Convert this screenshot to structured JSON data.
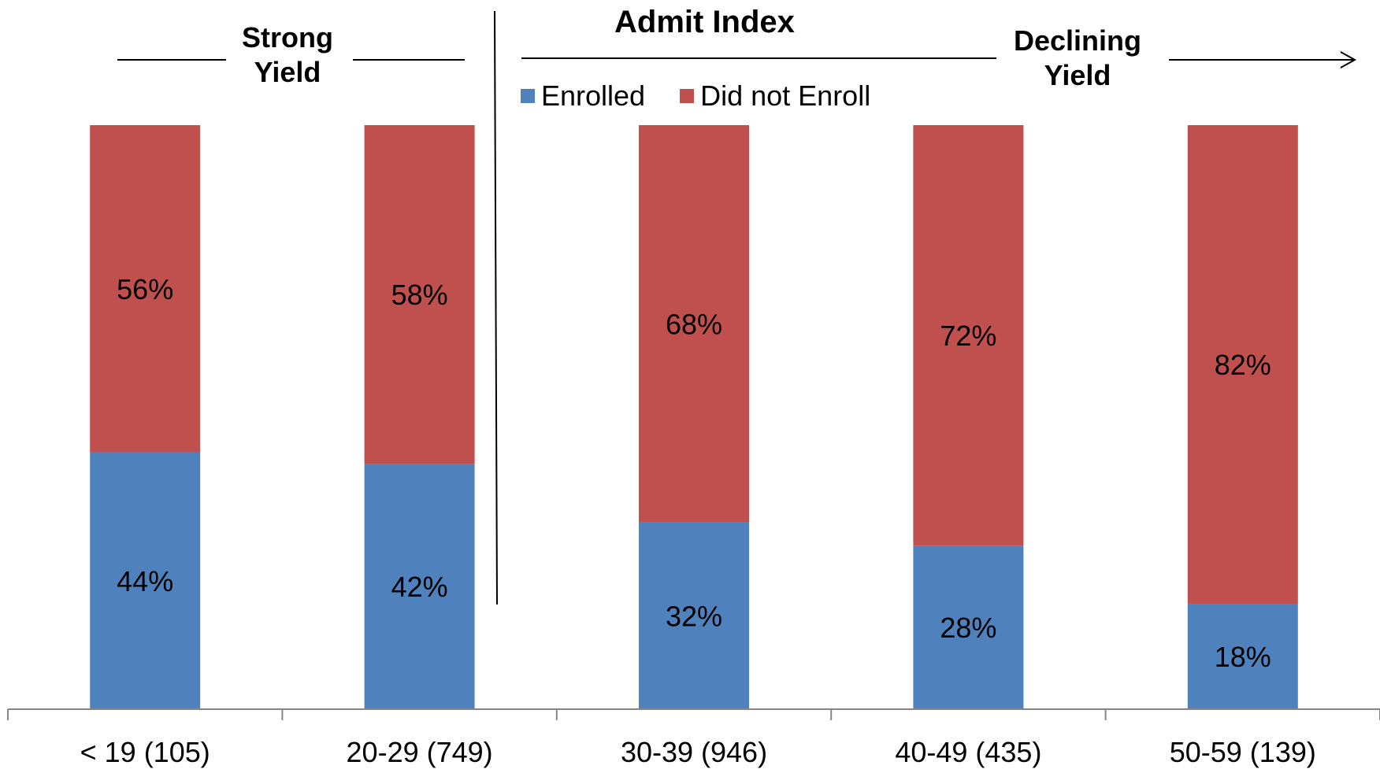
{
  "chart_data": {
    "type": "bar",
    "stacked": true,
    "percent": true,
    "categories": [
      "< 19 (105)",
      "20-29 (749)",
      "30-39 (946)",
      "40-49 (435)",
      "50-59 (139)"
    ],
    "series": [
      {
        "name": "Enrolled",
        "color": "#4f81bd",
        "values": [
          44,
          42,
          32,
          28,
          18
        ],
        "labels": [
          "44%",
          "42%",
          "32%",
          "28%",
          "18%"
        ]
      },
      {
        "name": "Did not Enroll",
        "color": "#c0504d",
        "values": [
          56,
          58,
          68,
          72,
          82
        ],
        "labels": [
          "56%",
          "58%",
          "68%",
          "72%",
          "82%"
        ]
      }
    ],
    "ylim": [
      0,
      100
    ],
    "legend": "top-center",
    "grid": false
  },
  "annotations": {
    "title": "Admit Index",
    "strong_yield": [
      "Strong",
      "Yield"
    ],
    "declining_yield": [
      "Declining",
      "Yield"
    ]
  }
}
